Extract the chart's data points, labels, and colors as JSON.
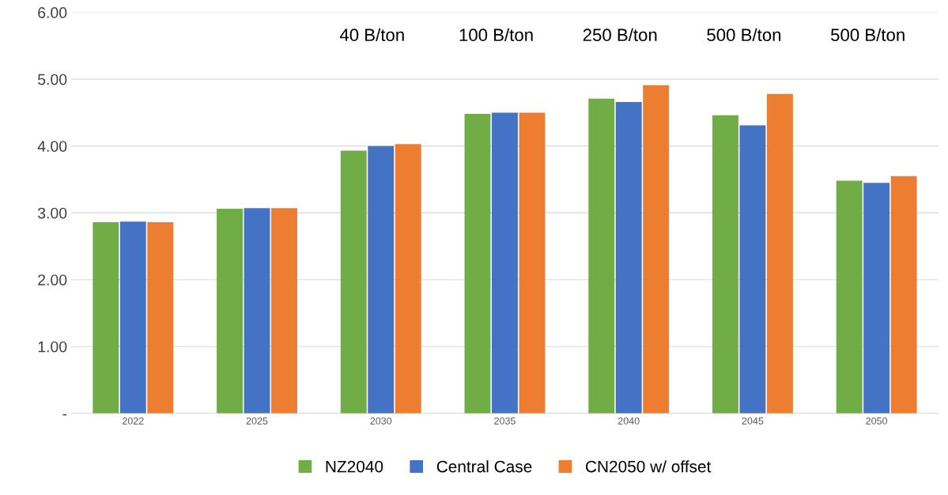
{
  "chart_data": {
    "type": "bar",
    "categories": [
      "2022",
      "2025",
      "2030",
      "2035",
      "2040",
      "2045",
      "2050"
    ],
    "series": [
      {
        "name": "NZ2040",
        "color": "#70ad47",
        "values": [
          2.86,
          3.06,
          3.93,
          4.48,
          4.71,
          4.46,
          3.48
        ]
      },
      {
        "name": "Central Case",
        "color": "#4472c4",
        "values": [
          2.87,
          3.07,
          4.0,
          4.5,
          4.66,
          4.31,
          3.45
        ]
      },
      {
        "name": "CN2050 w/ offset",
        "color": "#ed7d31",
        "values": [
          2.86,
          3.07,
          4.03,
          4.5,
          4.91,
          4.78,
          3.55
        ]
      }
    ],
    "ylim": [
      0,
      6
    ],
    "yticks": [
      {
        "value": 0,
        "label": "-"
      },
      {
        "value": 1,
        "label": "1.00"
      },
      {
        "value": 2,
        "label": "2.00"
      },
      {
        "value": 3,
        "label": "3.00"
      },
      {
        "value": 4,
        "label": "4.00"
      },
      {
        "value": 5,
        "label": "5.00"
      },
      {
        "value": 6,
        "label": "6.00"
      }
    ],
    "annotations": [
      "40 B/ton",
      "100 B/ton",
      "250 B/ton",
      "500 B/ton",
      "500 B/ton"
    ],
    "grid": "y",
    "legend": "bottom"
  }
}
